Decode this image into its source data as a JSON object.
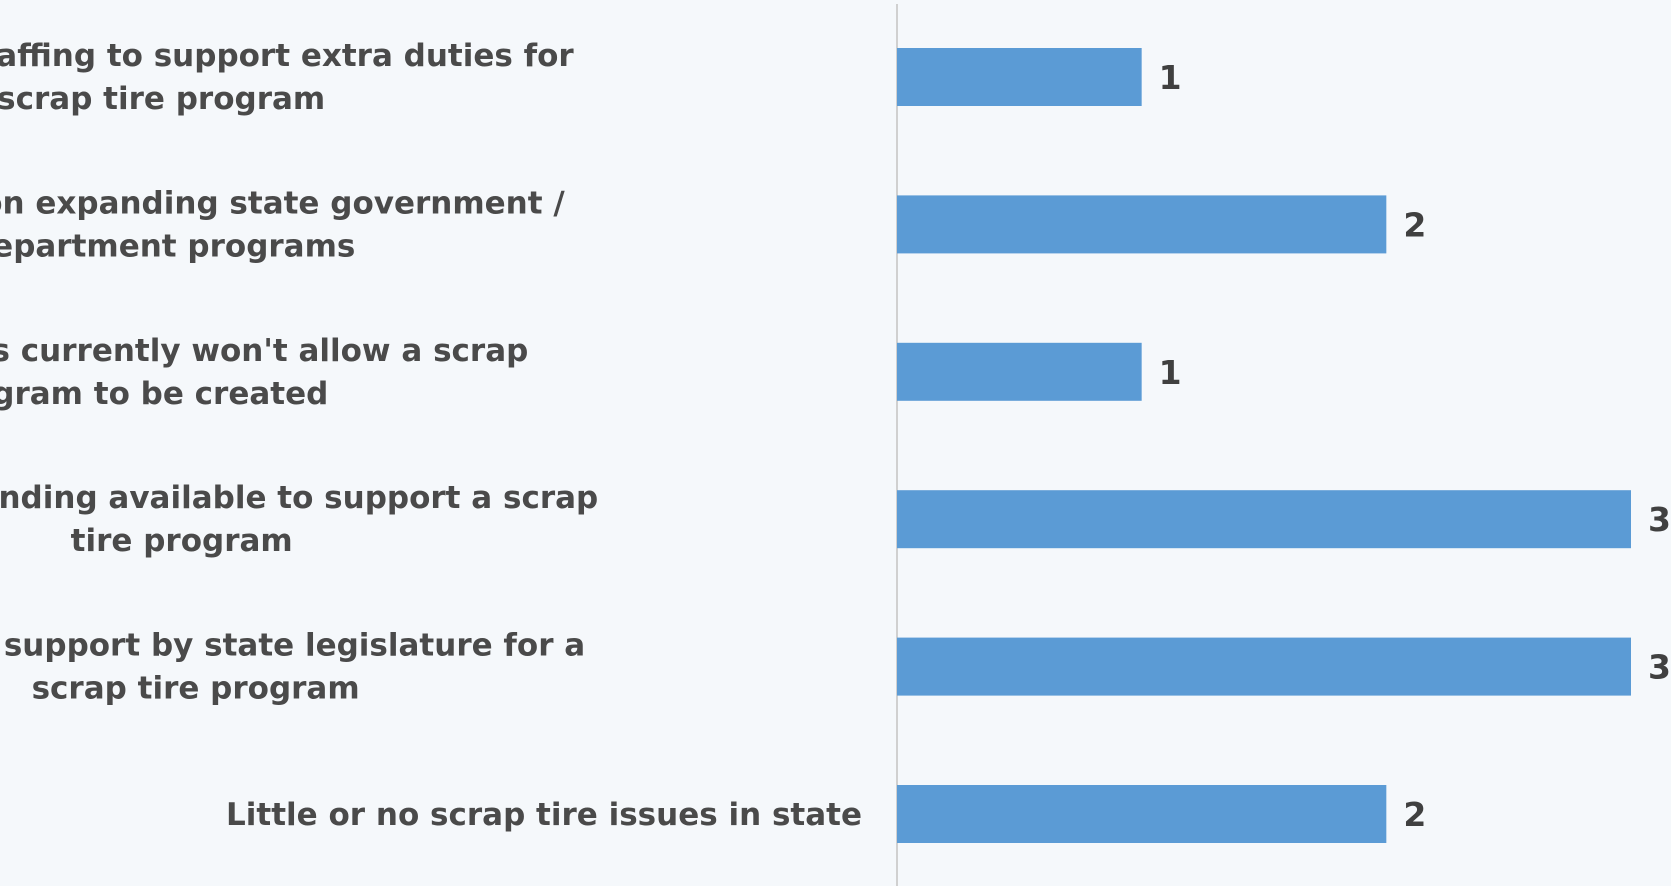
{
  "chart_data": {
    "type": "bar",
    "orientation": "horizontal",
    "categories": [
      [
        "Not enough staffing to support extra duties for",
        "scrap tire program"
      ],
      [
        "Restrictions on expanding state government /",
        "department programs"
      ],
      [
        "State budget issues currently won't allow a scrap",
        "tire program to be created"
      ],
      [
        "No current funding available to support a scrap",
        "tire program"
      ],
      [
        "No current support by state legislature for a",
        "scrap tire program"
      ],
      [
        "Little or no scrap tire issues in state"
      ]
    ],
    "values": [
      1,
      2,
      1,
      3,
      3,
      2
    ],
    "xlim": [
      0,
      3
    ],
    "grid": false,
    "data_labels": true,
    "bar_color": "#5b9bd5",
    "background": "#f5f8fb"
  }
}
